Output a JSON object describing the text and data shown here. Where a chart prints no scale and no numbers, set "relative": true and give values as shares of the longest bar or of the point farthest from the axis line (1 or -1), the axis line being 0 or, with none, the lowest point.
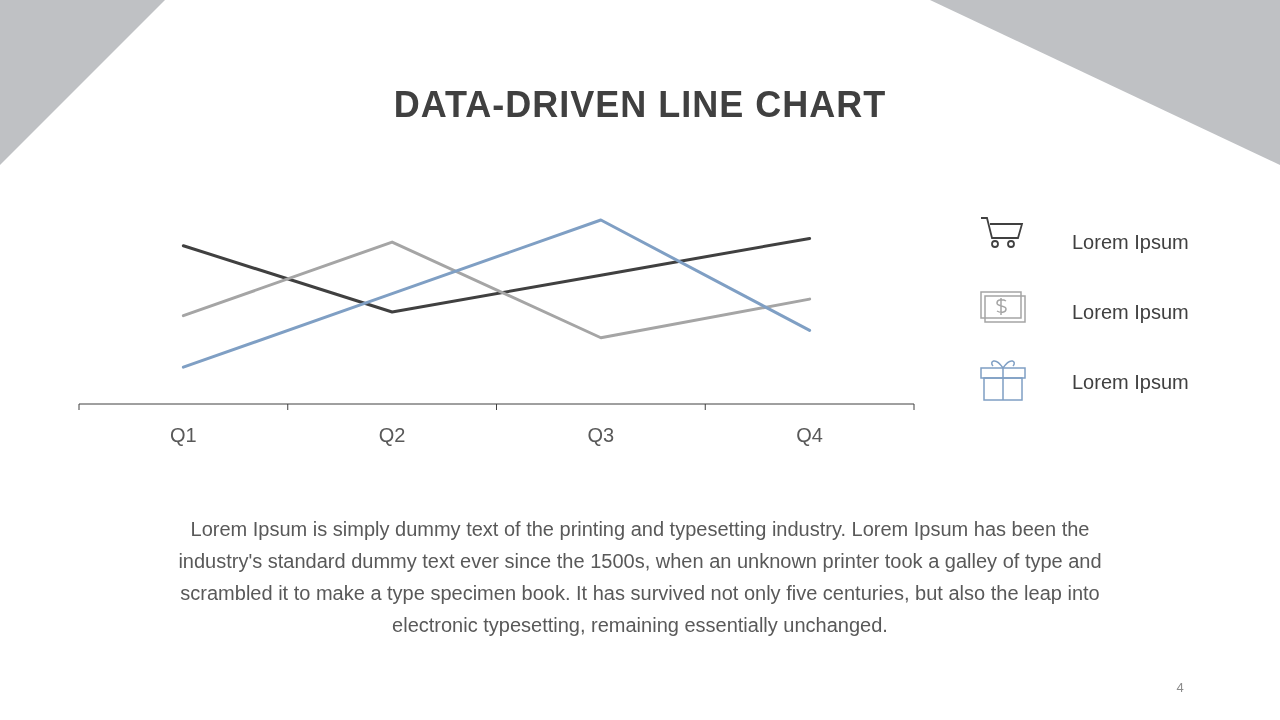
{
  "chart_data": {
    "type": "line",
    "title": "DATA-DRIVEN LINE CHART",
    "relative": true,
    "categories": [
      "Q1",
      "Q2",
      "Q3",
      "Q4"
    ],
    "series": [
      {
        "name": "Lorem Ipsum",
        "color": "#404040",
        "values": [
          0.86,
          0.5,
          0.7,
          0.9
        ]
      },
      {
        "name": "Lorem Ipsum",
        "color": "#a5a5a5",
        "values": [
          0.48,
          0.88,
          0.36,
          0.57
        ]
      },
      {
        "name": "Lorem Ipsum",
        "color": "#7f9fc4",
        "values": [
          0.2,
          0.6,
          1.0,
          0.4
        ]
      }
    ],
    "legend": "right",
    "annotations": [
      "Lorem Ipsum is simply dummy text of the printing and typesetting industry. Lorem Ipsum has been the industry's standard dummy text ever since the 1500s, when an unknown printer took a galley of type and scrambled it to make a type specimen book. It has survived not only five centuries, but also the leap into electronic typesetting, remaining essentially unchanged.",
      "4"
    ]
  }
}
